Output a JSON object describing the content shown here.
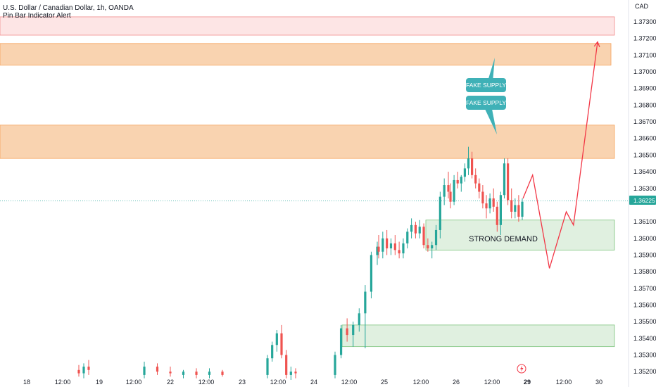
{
  "header": {
    "title": "U.S. Dollar / Canadian Dollar, 1h, OANDA",
    "indicator": "Pin Bar Indicator Alert"
  },
  "currency": "CAD",
  "colors": {
    "up": "#26a69a",
    "down": "#ef5350",
    "supply_fill": "#f9d3b0",
    "supply_border": "#f5a25a",
    "pink_fill": "#fde5e5",
    "pink_border": "#f28b8b",
    "demand_fill": "#e0f0e0",
    "demand_border": "#7dc47d",
    "projection": "#f23645",
    "callout": "#3fb1b7",
    "price_line": "#26a69a"
  },
  "chart_data": {
    "type": "candlestick",
    "y_axis": {
      "unit": "CAD",
      "range": [
        1.3515,
        1.3741
      ],
      "ticks": [
        "1.37300",
        "1.37200",
        "1.37100",
        "1.37000",
        "1.36900",
        "1.36800",
        "1.36700",
        "1.36600",
        "1.36500",
        "1.36400",
        "1.36300",
        "1.36100",
        "1.36000",
        "1.35900",
        "1.35800",
        "1.35700",
        "1.35600",
        "1.35500",
        "1.35400",
        "1.35300",
        "1.35200"
      ]
    },
    "x_axis": {
      "ticks": [
        "18",
        "12:00",
        "19",
        "12:00",
        "22",
        "12:00",
        "23",
        "12:00",
        "24",
        "12:00",
        "25",
        "12:00",
        "26",
        "12:00",
        "29",
        "12:00",
        "30"
      ],
      "highlighted": "29"
    },
    "last_price": "1.36225",
    "zones": [
      {
        "kind": "pink",
        "from": 1.3722,
        "to": 1.3733
      },
      {
        "kind": "supply",
        "from": 1.3704,
        "to": 1.3717
      },
      {
        "kind": "supply",
        "from": 1.3648,
        "to": 1.3668
      },
      {
        "kind": "demand",
        "from": 1.3593,
        "to": 1.3611,
        "label": "STRONG DEMAND"
      },
      {
        "kind": "demand",
        "from": 1.3535,
        "to": 1.3548
      }
    ],
    "callouts": [
      "FAKE SUPPLY",
      "FAKE SUPPLY"
    ],
    "projection": [
      {
        "t": 0,
        "price": 1.3624
      },
      {
        "t": 4,
        "price": 1.3638
      },
      {
        "t": 11,
        "price": 1.3582
      },
      {
        "t": 18,
        "price": 1.3616
      },
      {
        "t": 21,
        "price": 1.3608
      },
      {
        "t": 31,
        "price": 1.3718
      }
    ],
    "candles": [
      {
        "day": "18",
        "o": 1.3521,
        "h": 1.3524,
        "l": 1.3517,
        "c": 1.3519
      },
      {
        "day": "18",
        "o": 1.3519,
        "h": 1.3525,
        "l": 1.3516,
        "c": 1.3523
      },
      {
        "day": "18",
        "o": 1.3523,
        "h": 1.3527,
        "l": 1.3518,
        "c": 1.3521
      },
      {
        "day": "22",
        "o": 1.3518,
        "h": 1.3526,
        "l": 1.3516,
        "c": 1.3523
      },
      {
        "day": "22",
        "o": 1.3523,
        "h": 1.3525,
        "l": 1.3518,
        "c": 1.352
      },
      {
        "day": "22",
        "o": 1.352,
        "h": 1.3523,
        "l": 1.3517,
        "c": 1.3519
      },
      {
        "day": "22",
        "o": 1.3518,
        "h": 1.3521,
        "l": 1.3516,
        "c": 1.352
      },
      {
        "day": "22",
        "o": 1.352,
        "h": 1.3522,
        "l": 1.3516,
        "c": 1.3518
      },
      {
        "day": "22",
        "o": 1.3518,
        "h": 1.3522,
        "l": 1.3516,
        "c": 1.352
      },
      {
        "day": "22",
        "o": 1.352,
        "h": 1.3521,
        "l": 1.3517,
        "c": 1.3518
      },
      {
        "day": "23",
        "o": 1.3518,
        "h": 1.353,
        "l": 1.3516,
        "c": 1.3528
      },
      {
        "day": "23",
        "o": 1.3528,
        "h": 1.3538,
        "l": 1.3526,
        "c": 1.3536
      },
      {
        "day": "23",
        "o": 1.3536,
        "h": 1.3545,
        "l": 1.3532,
        "c": 1.3543
      },
      {
        "day": "23",
        "o": 1.3543,
        "h": 1.3548,
        "l": 1.3528,
        "c": 1.353
      },
      {
        "day": "23",
        "o": 1.353,
        "h": 1.3533,
        "l": 1.3516,
        "c": 1.3518
      },
      {
        "day": "23",
        "o": 1.3518,
        "h": 1.3523,
        "l": 1.3515,
        "c": 1.352
      },
      {
        "day": "23",
        "o": 1.352,
        "h": 1.3522,
        "l": 1.3516,
        "c": 1.3519
      },
      {
        "day": "24",
        "o": 1.3518,
        "h": 1.3532,
        "l": 1.3516,
        "c": 1.353
      },
      {
        "day": "24",
        "o": 1.353,
        "h": 1.3548,
        "l": 1.3528,
        "c": 1.3546
      },
      {
        "day": "24",
        "o": 1.3546,
        "h": 1.3552,
        "l": 1.3538,
        "c": 1.3542
      },
      {
        "day": "24",
        "o": 1.3542,
        "h": 1.355,
        "l": 1.3535,
        "c": 1.3548
      },
      {
        "day": "24",
        "o": 1.3548,
        "h": 1.3558,
        "l": 1.3544,
        "c": 1.3555
      },
      {
        "day": "24",
        "o": 1.3555,
        "h": 1.3572,
        "l": 1.3534,
        "c": 1.3568
      },
      {
        "day": "24",
        "o": 1.3568,
        "h": 1.3592,
        "l": 1.3564,
        "c": 1.359
      },
      {
        "day": "24",
        "o": 1.359,
        "h": 1.3598,
        "l": 1.3584,
        "c": 1.3595
      },
      {
        "day": "25",
        "o": 1.3595,
        "h": 1.3602,
        "l": 1.3588,
        "c": 1.3592
      },
      {
        "day": "25",
        "o": 1.3592,
        "h": 1.3604,
        "l": 1.3588,
        "c": 1.36
      },
      {
        "day": "25",
        "o": 1.36,
        "h": 1.3605,
        "l": 1.359,
        "c": 1.3594
      },
      {
        "day": "25",
        "o": 1.3594,
        "h": 1.36,
        "l": 1.359,
        "c": 1.3597
      },
      {
        "day": "25",
        "o": 1.3597,
        "h": 1.3602,
        "l": 1.359,
        "c": 1.3593
      },
      {
        "day": "25",
        "o": 1.3593,
        "h": 1.3598,
        "l": 1.3588,
        "c": 1.3591
      },
      {
        "day": "25",
        "o": 1.3591,
        "h": 1.36,
        "l": 1.3588,
        "c": 1.3597
      },
      {
        "day": "25",
        "o": 1.3597,
        "h": 1.3606,
        "l": 1.3594,
        "c": 1.3604
      },
      {
        "day": "25",
        "o": 1.3604,
        "h": 1.3612,
        "l": 1.36,
        "c": 1.3608
      },
      {
        "day": "25",
        "o": 1.3608,
        "h": 1.361,
        "l": 1.36,
        "c": 1.3603
      },
      {
        "day": "25",
        "o": 1.3603,
        "h": 1.3611,
        "l": 1.36,
        "c": 1.3607
      },
      {
        "day": "25",
        "o": 1.3607,
        "h": 1.3609,
        "l": 1.3594,
        "c": 1.3596
      },
      {
        "day": "25",
        "o": 1.3596,
        "h": 1.36,
        "l": 1.3592,
        "c": 1.3594
      },
      {
        "day": "25",
        "o": 1.3594,
        "h": 1.3598,
        "l": 1.3588,
        "c": 1.3596
      },
      {
        "day": "25",
        "o": 1.3596,
        "h": 1.3608,
        "l": 1.3593,
        "c": 1.3605
      },
      {
        "day": "25",
        "o": 1.3605,
        "h": 1.3628,
        "l": 1.36,
        "c": 1.3625
      },
      {
        "day": "25",
        "o": 1.3625,
        "h": 1.3636,
        "l": 1.362,
        "c": 1.3632
      },
      {
        "day": "25",
        "o": 1.3632,
        "h": 1.364,
        "l": 1.3624,
        "c": 1.3628
      },
      {
        "day": "26",
        "o": 1.3628,
        "h": 1.3633,
        "l": 1.3618,
        "c": 1.3622
      },
      {
        "day": "26",
        "o": 1.3622,
        "h": 1.3638,
        "l": 1.362,
        "c": 1.3635
      },
      {
        "day": "26",
        "o": 1.3635,
        "h": 1.364,
        "l": 1.363,
        "c": 1.3633
      },
      {
        "day": "26",
        "o": 1.3633,
        "h": 1.3638,
        "l": 1.3628,
        "c": 1.3637
      },
      {
        "day": "26",
        "o": 1.3637,
        "h": 1.3645,
        "l": 1.3634,
        "c": 1.3642
      },
      {
        "day": "26",
        "o": 1.3642,
        "h": 1.3655,
        "l": 1.3638,
        "c": 1.3648
      },
      {
        "day": "26",
        "o": 1.3648,
        "h": 1.3652,
        "l": 1.3636,
        "c": 1.3638
      },
      {
        "day": "26",
        "o": 1.3638,
        "h": 1.3642,
        "l": 1.363,
        "c": 1.3633
      },
      {
        "day": "26",
        "o": 1.3633,
        "h": 1.3636,
        "l": 1.3624,
        "c": 1.3628
      },
      {
        "day": "26",
        "o": 1.3628,
        "h": 1.3632,
        "l": 1.3618,
        "c": 1.3621
      },
      {
        "day": "26",
        "o": 1.3621,
        "h": 1.3626,
        "l": 1.3612,
        "c": 1.3618
      },
      {
        "day": "26",
        "o": 1.3618,
        "h": 1.3627,
        "l": 1.3615,
        "c": 1.3624
      },
      {
        "day": "26",
        "o": 1.3624,
        "h": 1.363,
        "l": 1.3616,
        "c": 1.3619
      },
      {
        "day": "26",
        "o": 1.3619,
        "h": 1.3622,
        "l": 1.3604,
        "c": 1.3608
      },
      {
        "day": "26",
        "o": 1.3608,
        "h": 1.3628,
        "l": 1.3602,
        "c": 1.3626
      },
      {
        "day": "26",
        "o": 1.3626,
        "h": 1.3648,
        "l": 1.3624,
        "c": 1.3645
      },
      {
        "day": "26",
        "o": 1.3645,
        "h": 1.3648,
        "l": 1.362,
        "c": 1.3623
      },
      {
        "day": "26",
        "o": 1.3623,
        "h": 1.363,
        "l": 1.3612,
        "c": 1.3616
      },
      {
        "day": "26",
        "o": 1.3616,
        "h": 1.3624,
        "l": 1.3612,
        "c": 1.362
      },
      {
        "day": "26",
        "o": 1.362,
        "h": 1.3626,
        "l": 1.361,
        "c": 1.3613
      },
      {
        "day": "26",
        "o": 1.3613,
        "h": 1.3624,
        "l": 1.3611,
        "c": 1.3622
      }
    ]
  }
}
